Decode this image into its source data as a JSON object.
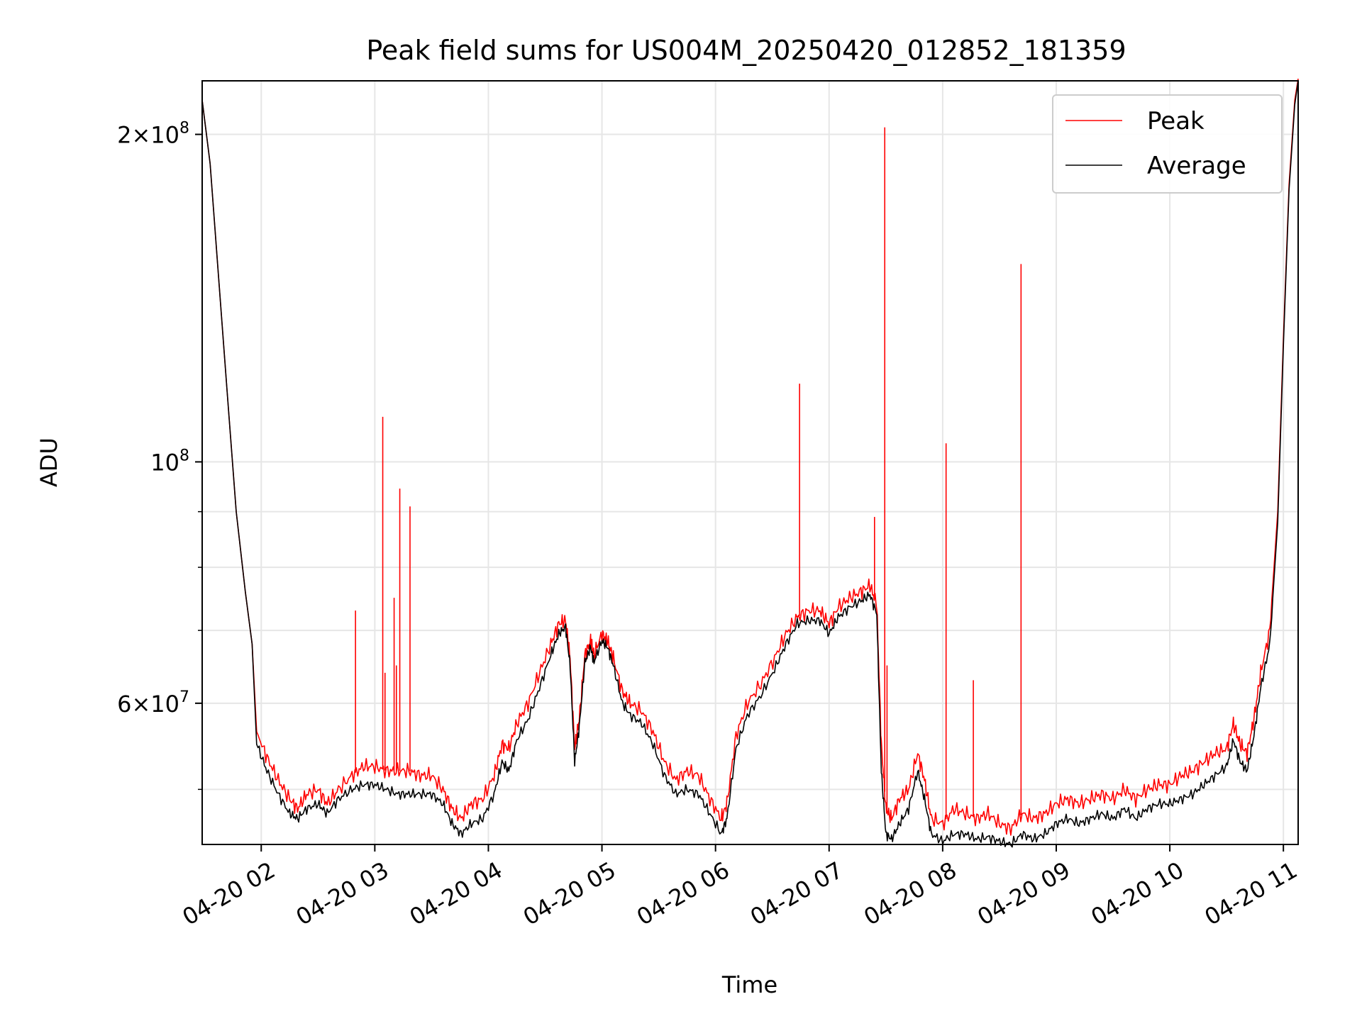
{
  "chart_data": {
    "type": "line",
    "title": "Peak field sums for US004M_20250420_012852_181359",
    "xlabel": "Time",
    "ylabel": "ADU",
    "yscale": "log",
    "grid": true,
    "legend_placement": "top-right",
    "x_unit": "hours on 2025-04-20",
    "xlim": [
      1.48,
      11.13
    ],
    "ylim": [
      44500000,
      224000000
    ],
    "x_ticks": [
      {
        "value": 2,
        "label": "04-20 02"
      },
      {
        "value": 3,
        "label": "04-20 03"
      },
      {
        "value": 4,
        "label": "04-20 04"
      },
      {
        "value": 5,
        "label": "04-20 05"
      },
      {
        "value": 6,
        "label": "04-20 06"
      },
      {
        "value": 7,
        "label": "04-20 07"
      },
      {
        "value": 8,
        "label": "04-20 08"
      },
      {
        "value": 9,
        "label": "04-20 09"
      },
      {
        "value": 10,
        "label": "04-20 10"
      },
      {
        "value": 11,
        "label": "04-20 11"
      }
    ],
    "y_major_ticks": [
      {
        "value": 100000000,
        "base": "10",
        "exp": "8"
      },
      {
        "value": 200000000,
        "mant": "2",
        "base": "10",
        "exp": "8"
      },
      {
        "value": 60000000,
        "mant": "6",
        "base": "10",
        "exp": "7"
      }
    ],
    "y_minor_ticks": [
      50000000,
      70000000,
      80000000,
      90000000
    ],
    "series": [
      {
        "name": "Peak",
        "color": "#ff0000",
        "points": [
          [
            1.48,
            215000000
          ],
          [
            1.55,
            188000000
          ],
          [
            1.62,
            150000000
          ],
          [
            1.7,
            116000000
          ],
          [
            1.78,
            90000000
          ],
          [
            1.86,
            76000000
          ],
          [
            1.92,
            68000000
          ],
          [
            1.96,
            56500000
          ],
          [
            2.05,
            53500000
          ],
          [
            2.15,
            51000000
          ],
          [
            2.25,
            49000000
          ],
          [
            2.32,
            48000000
          ],
          [
            2.4,
            49500000
          ],
          [
            2.5,
            50000000
          ],
          [
            2.58,
            48500000
          ],
          [
            2.68,
            50000000
          ],
          [
            2.8,
            51500000
          ],
          [
            2.9,
            52500000
          ],
          [
            3.0,
            52500000
          ],
          [
            3.1,
            52000000
          ],
          [
            3.2,
            52000000
          ],
          [
            3.3,
            52000000
          ],
          [
            3.4,
            51500000
          ],
          [
            3.5,
            51500000
          ],
          [
            3.6,
            50000000
          ],
          [
            3.68,
            48000000
          ],
          [
            3.76,
            47000000
          ],
          [
            3.85,
            48500000
          ],
          [
            3.95,
            49000000
          ],
          [
            4.05,
            51500000
          ],
          [
            4.12,
            55000000
          ],
          [
            4.18,
            54500000
          ],
          [
            4.25,
            57500000
          ],
          [
            4.35,
            60000000
          ],
          [
            4.45,
            64000000
          ],
          [
            4.55,
            68000000
          ],
          [
            4.62,
            71000000
          ],
          [
            4.68,
            71500000
          ],
          [
            4.72,
            66000000
          ],
          [
            4.76,
            54500000
          ],
          [
            4.8,
            58000000
          ],
          [
            4.85,
            66500000
          ],
          [
            4.9,
            68500000
          ],
          [
            4.93,
            66500000
          ],
          [
            5.0,
            69500000
          ],
          [
            5.05,
            68500000
          ],
          [
            5.1,
            66000000
          ],
          [
            5.18,
            61500000
          ],
          [
            5.25,
            60000000
          ],
          [
            5.35,
            59000000
          ],
          [
            5.45,
            56500000
          ],
          [
            5.55,
            53000000
          ],
          [
            5.65,
            51000000
          ],
          [
            5.75,
            52000000
          ],
          [
            5.85,
            51500000
          ],
          [
            5.95,
            49000000
          ],
          [
            6.05,
            47000000
          ],
          [
            6.1,
            48500000
          ],
          [
            6.18,
            56000000
          ],
          [
            6.28,
            60000000
          ],
          [
            6.4,
            62500000
          ],
          [
            6.52,
            66000000
          ],
          [
            6.62,
            69500000
          ],
          [
            6.72,
            72000000
          ],
          [
            6.82,
            73000000
          ],
          [
            6.92,
            73000000
          ],
          [
            7.0,
            71000000
          ],
          [
            7.08,
            73500000
          ],
          [
            7.18,
            75000000
          ],
          [
            7.28,
            76000000
          ],
          [
            7.36,
            77000000
          ],
          [
            7.42,
            74000000
          ],
          [
            7.46,
            55000000
          ],
          [
            7.5,
            48000000
          ],
          [
            7.55,
            47000000
          ],
          [
            7.62,
            49000000
          ],
          [
            7.7,
            50000000
          ],
          [
            7.78,
            54000000
          ],
          [
            7.84,
            51000000
          ],
          [
            7.9,
            47000000
          ],
          [
            8.0,
            46500000
          ],
          [
            8.1,
            48000000
          ],
          [
            8.2,
            47500000
          ],
          [
            8.3,
            47000000
          ],
          [
            8.4,
            47500000
          ],
          [
            8.5,
            46500000
          ],
          [
            8.6,
            46000000
          ],
          [
            8.7,
            47500000
          ],
          [
            8.8,
            47000000
          ],
          [
            8.9,
            47500000
          ],
          [
            9.0,
            48500000
          ],
          [
            9.1,
            49000000
          ],
          [
            9.2,
            48500000
          ],
          [
            9.3,
            49000000
          ],
          [
            9.4,
            49500000
          ],
          [
            9.5,
            49000000
          ],
          [
            9.6,
            50000000
          ],
          [
            9.7,
            49000000
          ],
          [
            9.8,
            50000000
          ],
          [
            9.9,
            50500000
          ],
          [
            10.0,
            50500000
          ],
          [
            10.1,
            51500000
          ],
          [
            10.2,
            52000000
          ],
          [
            10.3,
            53000000
          ],
          [
            10.4,
            54000000
          ],
          [
            10.5,
            54500000
          ],
          [
            10.56,
            57500000
          ],
          [
            10.62,
            55000000
          ],
          [
            10.68,
            54000000
          ],
          [
            10.74,
            58000000
          ],
          [
            10.8,
            64000000
          ],
          [
            10.88,
            70000000
          ],
          [
            10.95,
            90000000
          ],
          [
            11.0,
            130000000
          ],
          [
            11.05,
            180000000
          ],
          [
            11.1,
            215000000
          ],
          [
            11.13,
            225000000
          ]
        ],
        "spikes": [
          [
            2.83,
            73000000
          ],
          [
            3.07,
            110000000
          ],
          [
            3.09,
            64000000
          ],
          [
            3.17,
            75000000
          ],
          [
            3.19,
            65000000
          ],
          [
            3.22,
            94500000
          ],
          [
            3.31,
            91000000
          ],
          [
            6.74,
            118000000
          ],
          [
            7.4,
            89000000
          ],
          [
            7.49,
            203000000
          ],
          [
            7.51,
            65000000
          ],
          [
            8.03,
            104000000
          ],
          [
            8.27,
            63000000
          ],
          [
            8.69,
            152000000
          ]
        ]
      },
      {
        "name": "Average",
        "color": "#000000",
        "points": [
          [
            1.48,
            215000000
          ],
          [
            1.55,
            188000000
          ],
          [
            1.62,
            150000000
          ],
          [
            1.7,
            116000000
          ],
          [
            1.78,
            90000000
          ],
          [
            1.86,
            76000000
          ],
          [
            1.92,
            68000000
          ],
          [
            1.96,
            55000000
          ],
          [
            2.05,
            52000000
          ],
          [
            2.15,
            49500000
          ],
          [
            2.25,
            47500000
          ],
          [
            2.32,
            47000000
          ],
          [
            2.4,
            48000000
          ],
          [
            2.5,
            48500000
          ],
          [
            2.58,
            47500000
          ],
          [
            2.68,
            49000000
          ],
          [
            2.8,
            50000000
          ],
          [
            2.9,
            50500000
          ],
          [
            3.0,
            50500000
          ],
          [
            3.1,
            50000000
          ],
          [
            3.2,
            49500000
          ],
          [
            3.3,
            49500000
          ],
          [
            3.4,
            49500000
          ],
          [
            3.5,
            49500000
          ],
          [
            3.6,
            48500000
          ],
          [
            3.68,
            46500000
          ],
          [
            3.76,
            45500000
          ],
          [
            3.85,
            46500000
          ],
          [
            3.95,
            47000000
          ],
          [
            4.05,
            49500000
          ],
          [
            4.12,
            53000000
          ],
          [
            4.18,
            52000000
          ],
          [
            4.25,
            55500000
          ],
          [
            4.35,
            58000000
          ],
          [
            4.45,
            62000000
          ],
          [
            4.55,
            66500000
          ],
          [
            4.62,
            69500000
          ],
          [
            4.68,
            70500000
          ],
          [
            4.72,
            65000000
          ],
          [
            4.76,
            53000000
          ],
          [
            4.8,
            57000000
          ],
          [
            4.85,
            65500000
          ],
          [
            4.9,
            67500000
          ],
          [
            4.93,
            65500000
          ],
          [
            5.0,
            68500000
          ],
          [
            5.05,
            67500000
          ],
          [
            5.1,
            65000000
          ],
          [
            5.18,
            60000000
          ],
          [
            5.25,
            58500000
          ],
          [
            5.35,
            57500000
          ],
          [
            5.45,
            55000000
          ],
          [
            5.55,
            51500000
          ],
          [
            5.65,
            49500000
          ],
          [
            5.75,
            50000000
          ],
          [
            5.85,
            49500000
          ],
          [
            5.95,
            47500000
          ],
          [
            6.05,
            45500000
          ],
          [
            6.1,
            47000000
          ],
          [
            6.18,
            54500000
          ],
          [
            6.28,
            58500000
          ],
          [
            6.4,
            61000000
          ],
          [
            6.52,
            64500000
          ],
          [
            6.62,
            68000000
          ],
          [
            6.72,
            71000000
          ],
          [
            6.82,
            71500000
          ],
          [
            6.92,
            71500000
          ],
          [
            7.0,
            69500000
          ],
          [
            7.08,
            72000000
          ],
          [
            7.18,
            73500000
          ],
          [
            7.28,
            74500000
          ],
          [
            7.36,
            75500000
          ],
          [
            7.42,
            72500000
          ],
          [
            7.46,
            52000000
          ],
          [
            7.5,
            45500000
          ],
          [
            7.55,
            45000000
          ],
          [
            7.62,
            46500000
          ],
          [
            7.7,
            48000000
          ],
          [
            7.78,
            52000000
          ],
          [
            7.84,
            49000000
          ],
          [
            7.9,
            45500000
          ],
          [
            8.0,
            44800000
          ],
          [
            8.1,
            45500000
          ],
          [
            8.2,
            45500000
          ],
          [
            8.3,
            45000000
          ],
          [
            8.4,
            45200000
          ],
          [
            8.5,
            44800000
          ],
          [
            8.6,
            44500000
          ],
          [
            8.7,
            45500000
          ],
          [
            8.8,
            45000000
          ],
          [
            8.9,
            45500000
          ],
          [
            9.0,
            46500000
          ],
          [
            9.1,
            47000000
          ],
          [
            9.2,
            46500000
          ],
          [
            9.3,
            47000000
          ],
          [
            9.4,
            47500000
          ],
          [
            9.5,
            47000000
          ],
          [
            9.6,
            48000000
          ],
          [
            9.7,
            47000000
          ],
          [
            9.8,
            48000000
          ],
          [
            9.9,
            48500000
          ],
          [
            10.0,
            48500000
          ],
          [
            10.1,
            49000000
          ],
          [
            10.2,
            49500000
          ],
          [
            10.3,
            50500000
          ],
          [
            10.4,
            51500000
          ],
          [
            10.5,
            52500000
          ],
          [
            10.56,
            55500000
          ],
          [
            10.62,
            53000000
          ],
          [
            10.68,
            52000000
          ],
          [
            10.74,
            56000000
          ],
          [
            10.8,
            62000000
          ],
          [
            10.88,
            68000000
          ],
          [
            10.95,
            88000000
          ],
          [
            11.0,
            128000000
          ],
          [
            11.05,
            178000000
          ],
          [
            11.1,
            213000000
          ],
          [
            11.13,
            224000000
          ]
        ]
      }
    ]
  }
}
